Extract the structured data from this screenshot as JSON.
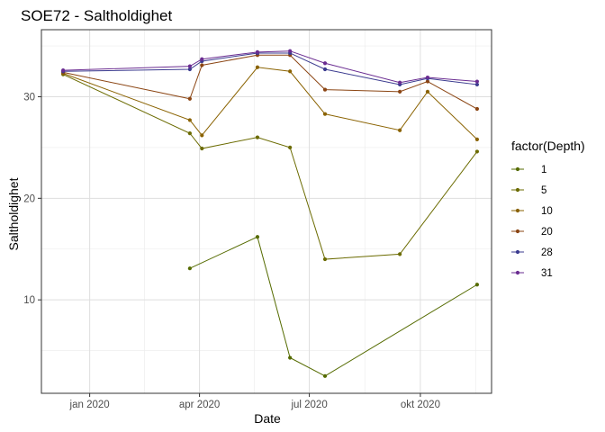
{
  "chart_data": {
    "type": "line",
    "title": "SOE72  -  Saltholdighet",
    "xlabel": "Date",
    "ylabel": "Saltholdighet",
    "x_axis": {
      "type": "date",
      "range": [
        "2019-11-22",
        "2020-11-29"
      ],
      "ticks": [
        {
          "date": "2020-01-01",
          "label": "jan 2020"
        },
        {
          "date": "2020-04-01",
          "label": "apr 2020"
        },
        {
          "date": "2020-07-01",
          "label": "jul 2020"
        },
        {
          "date": "2020-10-01",
          "label": "okt 2020"
        }
      ]
    },
    "y_axis": {
      "range": [
        0.8,
        36.6
      ],
      "ticks": [
        10,
        20,
        30
      ],
      "minor_ticks": [
        5,
        15,
        25,
        35
      ]
    },
    "grid": true,
    "legend": {
      "title": "factor(Depth)",
      "position": "right"
    },
    "series": [
      {
        "name": "1",
        "color": "#556b00",
        "points": [
          [
            "2020-03-24",
            13.1
          ],
          [
            "2020-05-19",
            16.2
          ],
          [
            "2020-06-15",
            4.3
          ],
          [
            "2020-07-14",
            2.5
          ],
          [
            "2020-11-17",
            11.5
          ]
        ]
      },
      {
        "name": "5",
        "color": "#6b6b00",
        "points": [
          [
            "2019-12-10",
            32.2
          ],
          [
            "2020-03-24",
            26.4
          ],
          [
            "2020-04-03",
            24.9
          ],
          [
            "2020-05-19",
            26.0
          ],
          [
            "2020-06-15",
            25.0
          ],
          [
            "2020-07-14",
            14.0
          ],
          [
            "2020-09-14",
            14.5
          ],
          [
            "2020-11-17",
            24.6
          ]
        ]
      },
      {
        "name": "10",
        "color": "#8a6200",
        "points": [
          [
            "2019-12-10",
            32.3
          ],
          [
            "2020-03-24",
            27.7
          ],
          [
            "2020-04-03",
            26.2
          ],
          [
            "2020-05-19",
            32.9
          ],
          [
            "2020-06-15",
            32.5
          ],
          [
            "2020-07-14",
            28.3
          ],
          [
            "2020-09-14",
            26.7
          ],
          [
            "2020-10-07",
            30.5
          ],
          [
            "2020-11-17",
            25.8
          ]
        ]
      },
      {
        "name": "20",
        "color": "#8b4513",
        "points": [
          [
            "2019-12-10",
            32.4
          ],
          [
            "2020-03-24",
            29.8
          ],
          [
            "2020-04-03",
            33.1
          ],
          [
            "2020-05-19",
            34.1
          ],
          [
            "2020-06-15",
            34.1
          ],
          [
            "2020-07-14",
            30.7
          ],
          [
            "2020-09-14",
            30.5
          ],
          [
            "2020-10-07",
            31.5
          ],
          [
            "2020-11-17",
            28.8
          ]
        ]
      },
      {
        "name": "28",
        "color": "#3b3b8f",
        "points": [
          [
            "2019-12-10",
            32.5
          ],
          [
            "2020-03-24",
            32.7
          ],
          [
            "2020-04-03",
            33.5
          ],
          [
            "2020-05-19",
            34.3
          ],
          [
            "2020-06-15",
            34.3
          ],
          [
            "2020-07-14",
            32.7
          ],
          [
            "2020-09-14",
            31.2
          ],
          [
            "2020-10-07",
            31.8
          ],
          [
            "2020-11-17",
            31.2
          ]
        ]
      },
      {
        "name": "31",
        "color": "#6a2c91",
        "points": [
          [
            "2019-12-10",
            32.6
          ],
          [
            "2020-03-24",
            33.0
          ],
          [
            "2020-04-03",
            33.7
          ],
          [
            "2020-05-19",
            34.4
          ],
          [
            "2020-06-15",
            34.5
          ],
          [
            "2020-07-14",
            33.3
          ],
          [
            "2020-09-14",
            31.4
          ],
          [
            "2020-10-07",
            31.9
          ],
          [
            "2020-11-17",
            31.5
          ]
        ]
      }
    ]
  }
}
